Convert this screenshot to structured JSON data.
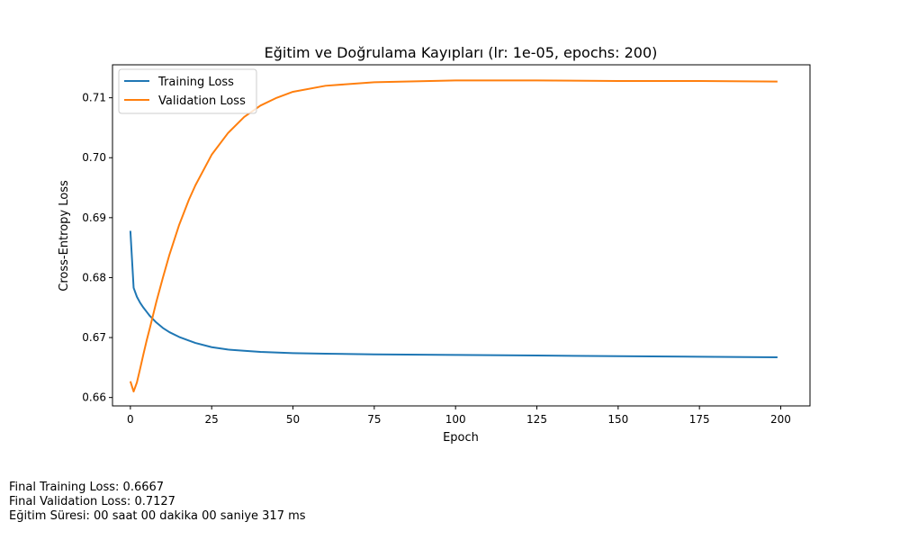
{
  "chart_data": {
    "type": "line",
    "title": "Eğitim ve Doğrulama Kayıpları (lr: 1e-05, epochs: 200)",
    "xlabel": "Epoch",
    "ylabel": "Cross-Entropy Loss",
    "xlim": [
      -5.5,
      209
    ],
    "ylim": [
      0.6586,
      0.7155
    ],
    "xticks": [
      0,
      25,
      50,
      75,
      100,
      125,
      150,
      175,
      200
    ],
    "yticks": [
      0.66,
      0.67,
      0.68,
      0.69,
      0.7,
      0.71
    ],
    "ytick_labels": [
      "0.66",
      "0.67",
      "0.68",
      "0.69",
      "0.70",
      "0.71"
    ],
    "grid": false,
    "legend_position": "top-left",
    "series": [
      {
        "name": "Training Loss",
        "color": "#1f77b4",
        "x": [
          0,
          1,
          2,
          3,
          4,
          5,
          6,
          8,
          10,
          12,
          15,
          18,
          20,
          25,
          30,
          35,
          40,
          50,
          60,
          75,
          100,
          125,
          150,
          175,
          199
        ],
        "y": [
          0.6878,
          0.6783,
          0.6768,
          0.6758,
          0.675,
          0.6743,
          0.6736,
          0.6725,
          0.6716,
          0.6709,
          0.6701,
          0.6695,
          0.6691,
          0.6684,
          0.668,
          0.6678,
          0.6676,
          0.6674,
          0.6673,
          0.6672,
          0.6671,
          0.667,
          0.6669,
          0.6668,
          0.6667
        ]
      },
      {
        "name": "Validation Loss",
        "color": "#ff7f0e",
        "x": [
          0,
          1,
          2,
          3,
          4,
          5,
          6,
          8,
          10,
          12,
          15,
          18,
          20,
          25,
          30,
          35,
          40,
          45,
          50,
          60,
          75,
          100,
          125,
          150,
          175,
          199
        ],
        "y": [
          0.6627,
          0.661,
          0.6625,
          0.6648,
          0.6672,
          0.6695,
          0.6716,
          0.676,
          0.68,
          0.6838,
          0.6888,
          0.693,
          0.6954,
          0.7005,
          0.7041,
          0.7068,
          0.7087,
          0.71,
          0.711,
          0.712,
          0.7126,
          0.7129,
          0.7129,
          0.7128,
          0.7128,
          0.7127
        ]
      }
    ]
  },
  "footer": {
    "training_loss": "Final Training Loss: 0.6667",
    "validation_loss": "Final Validation Loss: 0.7127",
    "duration": "Eğitim Süresi: 00 saat 00 dakika 00 saniye 317 ms"
  }
}
